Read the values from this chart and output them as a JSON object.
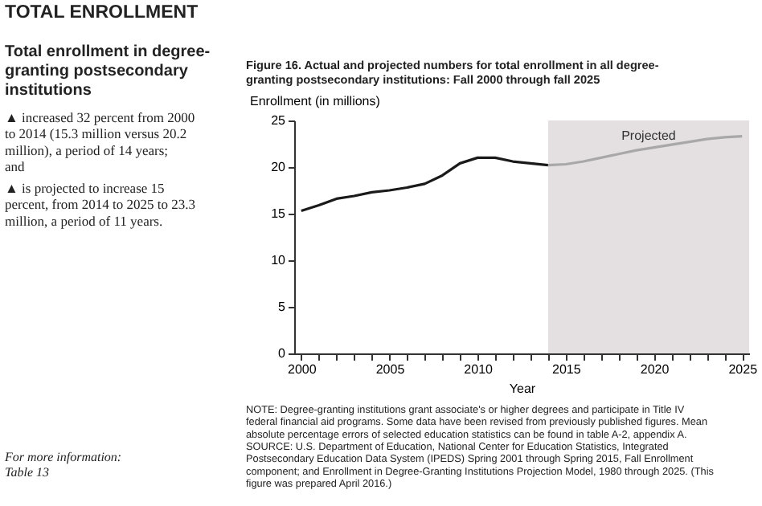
{
  "chart_data": {
    "type": "line",
    "title": "Figure 16.  Actual and projected numbers for total enrollment in all degree-granting postsecondary institutions: Fall 2000 through fall 2025",
    "xlabel": "Year",
    "ylabel": "Enrollment (in millions)",
    "series": [
      {
        "color": "#1a1a1a",
        "x": [
          2000,
          2001,
          2002,
          2003,
          2004,
          2005,
          2006,
          2007,
          2008,
          2009,
          2010,
          2011,
          2012,
          2013,
          2014
        ],
        "values": [
          15.3,
          15.9,
          16.6,
          16.9,
          17.3,
          17.5,
          17.8,
          18.2,
          19.1,
          20.4,
          21.0,
          21.0,
          20.6,
          20.4,
          20.2
        ]
      },
      {
        "color": "#a8a8a8",
        "x": [
          2014,
          2015,
          2016,
          2017,
          2018,
          2019,
          2020,
          2021,
          2022,
          2023,
          2024,
          2025
        ],
        "values": [
          20.2,
          20.3,
          20.6,
          21.0,
          21.4,
          21.8,
          22.1,
          22.4,
          22.7,
          23.0,
          23.2,
          23.3
        ]
      }
    ],
    "bands": [
      {
        "axis": "x",
        "from": 2014,
        "to": 2025.4,
        "label": "Projected",
        "color": "#e4dfe0"
      }
    ],
    "xlim": [
      1999.6,
      2025.4
    ],
    "xticks": [
      2000,
      {
        "value": 2001,
        "label": null
      },
      {
        "value": 2002,
        "label": null
      },
      {
        "value": 2003,
        "label": null
      },
      {
        "value": 2004,
        "label": null
      },
      2005,
      {
        "value": 2006,
        "label": null
      },
      {
        "value": 2007,
        "label": null
      },
      {
        "value": 2008,
        "label": null
      },
      {
        "value": 2009,
        "label": null
      },
      2010,
      {
        "value": 2011,
        "label": null
      },
      {
        "value": 2012,
        "label": null
      },
      {
        "value": 2013,
        "label": null
      },
      {
        "value": 2014,
        "label": null
      },
      2015,
      {
        "value": 2016,
        "label": null
      },
      {
        "value": 2017,
        "label": null
      },
      {
        "value": 2018,
        "label": null
      },
      {
        "value": 2019,
        "label": null
      },
      2020,
      {
        "value": 2021,
        "label": null
      },
      {
        "value": 2022,
        "label": null
      },
      {
        "value": 2023,
        "label": null
      },
      {
        "value": 2024,
        "label": null
      },
      2025
    ],
    "ylim": [
      0,
      25
    ],
    "yticks": [
      0,
      5,
      10,
      15,
      20,
      25
    ],
    "grid": false,
    "marker": "none",
    "line_style": "solid",
    "annotations": [
      "TOTAL ENROLLMENT",
      "Total enrollment in degree-granting postsecondary institutions",
      "▲ increased 32 percent from 2000 to 2014 (15.3 million versus 20.2 million), a period of 14 years; and",
      "▲ is projected to increase 15 percent, from 2014 to 2025 to 23.3 million, a period of 11 years.",
      "For more information: Table 13",
      "NOTE: Degree-granting institutions grant associate's or higher degrees and participate in Title IV federal financial aid programs. Some data have been revised from previously published figures. Mean absolute percentage errors of selected education statistics can be found in table A-2, appendix A.",
      "SOURCE: U.S. Department of Education, National Center for Education Statistics, Integrated Postsecondary Education Data System (IPEDS) Spring 2001 through Spring 2015, Fall Enrollment component; and Enrollment in Degree-Granting Institutions Projection Model, 1980 through 2025. (This figure was prepared April 2016.)"
    ]
  }
}
